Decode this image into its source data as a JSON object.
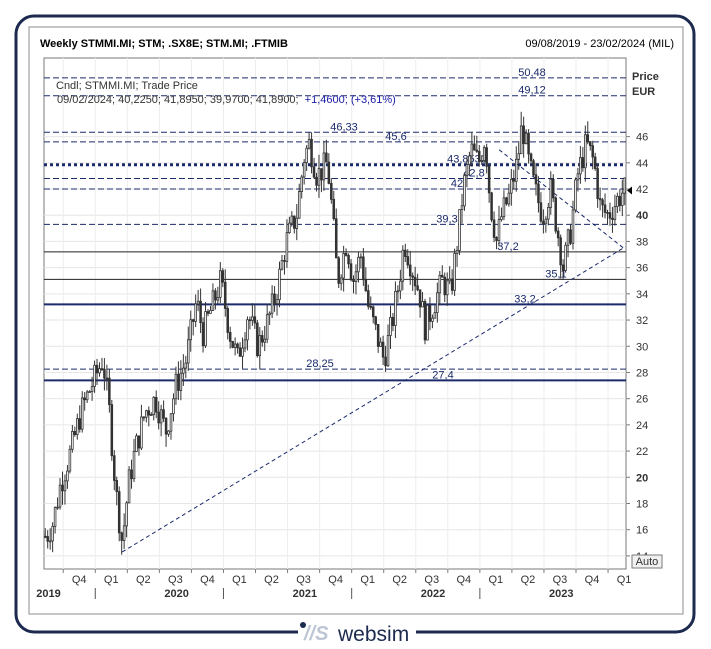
{
  "header": {
    "title": "Weekly STMMI.MI; STM; .SX8E; STM.MI; .FTMIB",
    "date_range": "09/08/2019 - 23/02/2024 (MIL)"
  },
  "legend": {
    "line1": "Cndl; STMMI.MI; Trade Price",
    "line2_prefix": "09/02/2024; 40,2250; 41,8950; 39,9700; 41,8900;",
    "line2_change": "+1,4600; (+3,61%)"
  },
  "axis": {
    "price_label": "Price",
    "currency_label": "EUR",
    "auto_button": "Auto",
    "y_min": 13,
    "y_max": 52,
    "y_ticks": [
      14,
      16,
      18,
      20,
      22,
      24,
      26,
      28,
      30,
      32,
      34,
      36,
      38,
      40,
      42,
      44,
      46
    ],
    "y_tick_labels": [
      "14",
      "16",
      "18",
      "20",
      "22",
      "24",
      "26",
      "28",
      "30",
      "32",
      "34",
      "36",
      "38",
      "40",
      "42",
      "44",
      "46"
    ],
    "quarter_labels": [
      "Q4",
      "Q1",
      "Q2",
      "Q3",
      "Q4",
      "Q1",
      "Q2",
      "Q3",
      "Q4",
      "Q1",
      "Q2",
      "Q3",
      "Q4",
      "Q1",
      "Q2",
      "Q3",
      "Q4",
      "Q1"
    ],
    "year_labels": [
      "2019",
      "2020",
      "2021",
      "2022",
      "2023"
    ]
  },
  "brand": {
    "logo_text": "websim"
  },
  "colors": {
    "frame": "#1b2a4e",
    "level": "#1b2a6b",
    "candle": "#333333",
    "last_price_marker": "#000000"
  },
  "chart_data": {
    "type": "candlestick",
    "title": "Weekly STMMI.MI; STM; .SX8E; STM.MI; .FTMIB",
    "ylabel": "Price EUR",
    "ylim": [
      13,
      52
    ],
    "last_close": 41.89,
    "levels": [
      {
        "value": 50.48,
        "label": "50,48",
        "style": "dash"
      },
      {
        "value": 49.12,
        "label": "49,12",
        "style": "dash"
      },
      {
        "value": 46.33,
        "label": "46,33",
        "style": "dash"
      },
      {
        "value": 45.6,
        "label": "45,6",
        "style": "dash"
      },
      {
        "value": 43.8533,
        "label": "43,8533",
        "style": "dotted-bold"
      },
      {
        "value": 42.8,
        "label": "42,8",
        "style": "dash"
      },
      {
        "value": 42,
        "label": "42",
        "style": "dash"
      },
      {
        "value": 39.3,
        "label": "39,3",
        "style": "dash"
      },
      {
        "value": 37.2,
        "label": "37,2",
        "style": "solid"
      },
      {
        "value": 35.1,
        "label": "35,1",
        "style": "solid"
      },
      {
        "value": 33.2,
        "label": "33,2",
        "style": "solid-bold"
      },
      {
        "value": 28.25,
        "label": "28,25",
        "style": "dash"
      },
      {
        "value": 27.4,
        "label": "27,4",
        "style": "solid-bold"
      }
    ],
    "trendlines": [
      {
        "from": [
          2020.21,
          14.3
        ],
        "to": [
          2024.12,
          37.5
        ]
      },
      {
        "from": [
          2023.15,
          45.0
        ],
        "to": [
          2024.12,
          37.5
        ]
      }
    ],
    "anchors": [
      [
        2019.61,
        15.5
      ],
      [
        2019.66,
        16.5
      ],
      [
        2019.72,
        19.5
      ],
      [
        2019.8,
        22.0
      ],
      [
        2019.88,
        25.0
      ],
      [
        2019.96,
        27.0
      ],
      [
        2020.05,
        29.0
      ],
      [
        2020.1,
        25.0
      ],
      [
        2020.15,
        19.0
      ],
      [
        2020.2,
        15.0
      ],
      [
        2020.25,
        19.5
      ],
      [
        2020.3,
        22.0
      ],
      [
        2020.38,
        25.0
      ],
      [
        2020.46,
        26.0
      ],
      [
        2020.54,
        23.5
      ],
      [
        2020.62,
        27.0
      ],
      [
        2020.7,
        29.0
      ],
      [
        2020.78,
        33.5
      ],
      [
        2020.83,
        31.0
      ],
      [
        2020.9,
        33.0
      ],
      [
        2020.97,
        35.0
      ],
      [
        2021.04,
        31.0
      ],
      [
        2021.1,
        29.0
      ],
      [
        2021.18,
        32.5
      ],
      [
        2021.26,
        30.0
      ],
      [
        2021.34,
        32.0
      ],
      [
        2021.4,
        34.0
      ],
      [
        2021.48,
        38.0
      ],
      [
        2021.56,
        40.0
      ],
      [
        2021.62,
        44.5
      ],
      [
        2021.66,
        45.5
      ],
      [
        2021.72,
        43.0
      ],
      [
        2021.8,
        44.0
      ],
      [
        2021.84,
        40.0
      ],
      [
        2021.88,
        35.0
      ],
      [
        2021.95,
        38.0
      ],
      [
        2022.0,
        35.0
      ],
      [
        2022.06,
        37.0
      ],
      [
        2022.12,
        33.0
      ],
      [
        2022.18,
        31.0
      ],
      [
        2022.24,
        29.0
      ],
      [
        2022.3,
        31.5
      ],
      [
        2022.36,
        35.0
      ],
      [
        2022.4,
        38.0
      ],
      [
        2022.46,
        36.0
      ],
      [
        2022.52,
        34.0
      ],
      [
        2022.56,
        31.5
      ],
      [
        2022.62,
        33.0
      ],
      [
        2022.7,
        35.0
      ],
      [
        2022.76,
        34.0
      ],
      [
        2022.82,
        38.5
      ],
      [
        2022.86,
        42.0
      ],
      [
        2022.92,
        45.0
      ],
      [
        2022.98,
        44.0
      ],
      [
        2023.03,
        46.0
      ],
      [
        2023.07,
        41.0
      ],
      [
        2023.12,
        38.0
      ],
      [
        2023.16,
        40.0
      ],
      [
        2023.22,
        41.5
      ],
      [
        2023.28,
        44.0
      ],
      [
        2023.32,
        47.0
      ],
      [
        2023.37,
        44.0
      ],
      [
        2023.43,
        41.5
      ],
      [
        2023.48,
        40.0
      ],
      [
        2023.54,
        42.0
      ],
      [
        2023.6,
        38.5
      ],
      [
        2023.64,
        36.0
      ],
      [
        2023.7,
        39.0
      ],
      [
        2023.75,
        43.0
      ],
      [
        2023.82,
        45.5
      ],
      [
        2023.88,
        44.0
      ],
      [
        2023.93,
        40.5
      ],
      [
        2023.99,
        40.0
      ],
      [
        2024.05,
        41.0
      ],
      [
        2024.11,
        41.9
      ]
    ],
    "x_range": [
      2019.6,
      2024.14
    ]
  }
}
